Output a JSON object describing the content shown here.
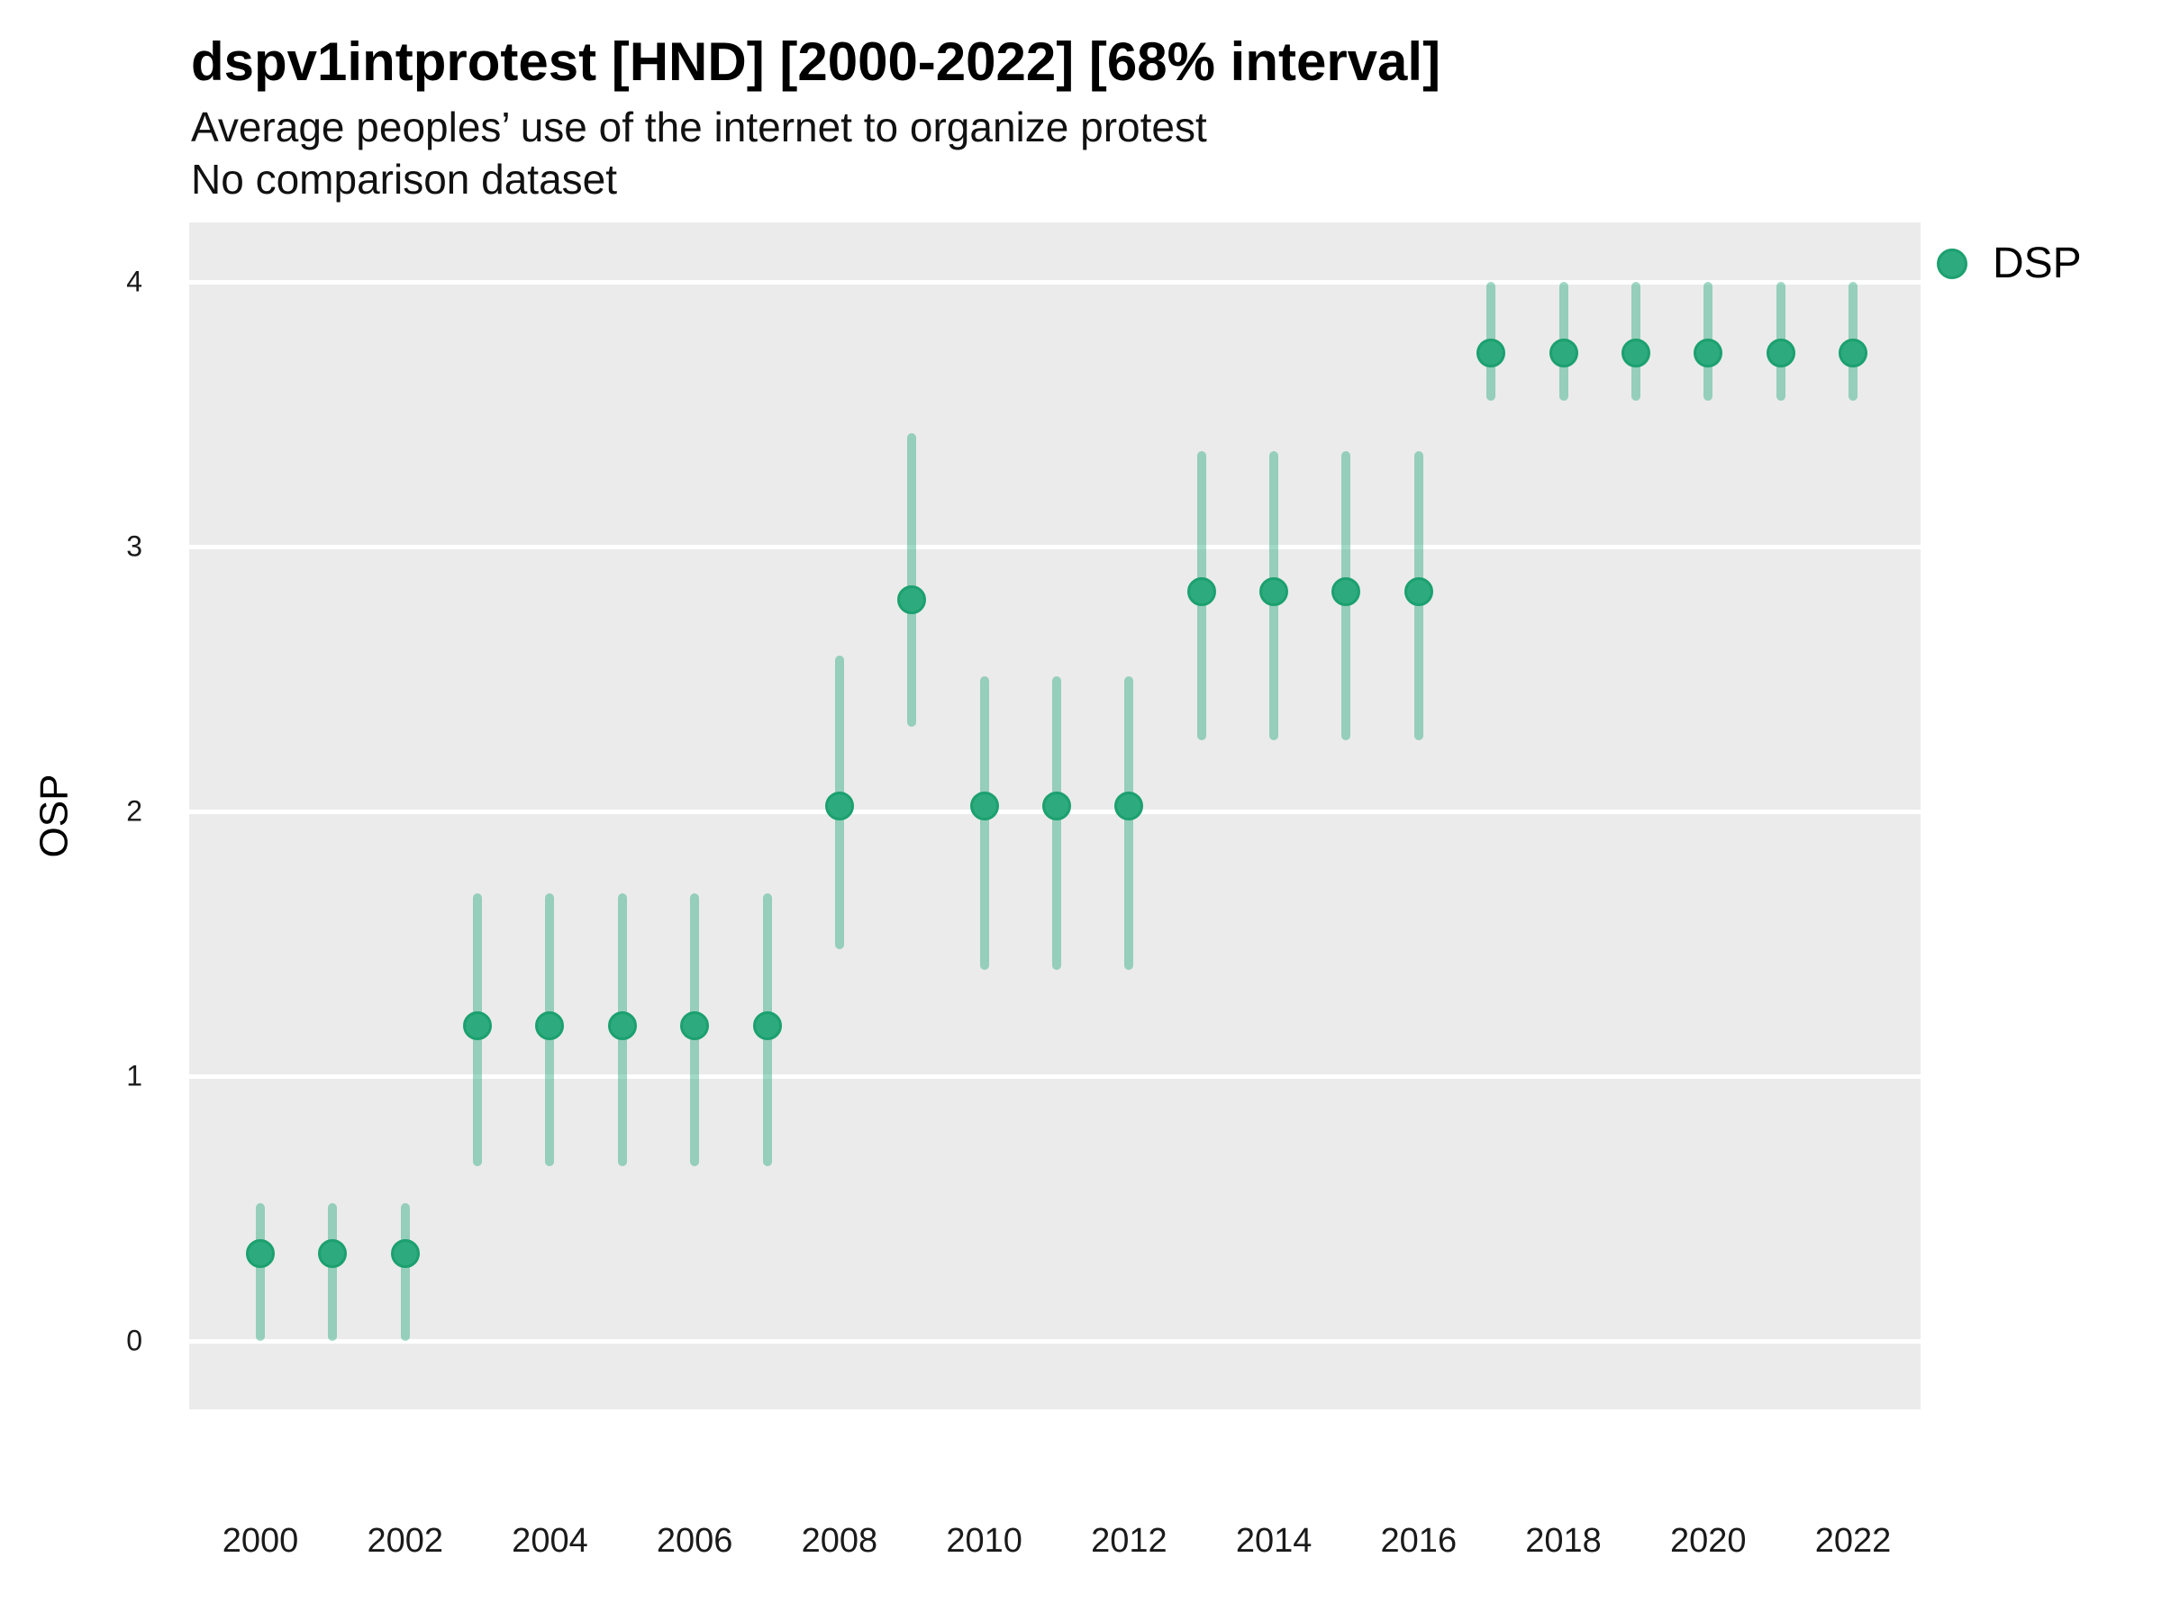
{
  "header": {
    "title": "dspv1intprotest [HND] [2000-2022] [68% interval]",
    "subtitle": "Average peoples’ use of the internet to organize protest",
    "note": "No comparison dataset"
  },
  "chart_data": {
    "type": "pointrange",
    "title": "dspv1intprotest [HND] [2000-2022] [68% interval]",
    "subtitle": "Average peoples’ use of the internet to organize protest",
    "note": "No comparison dataset",
    "interval_label": "68% interval",
    "country_code": "HND",
    "xlabel": "",
    "ylabel": "OSP",
    "x": [
      2000,
      2001,
      2002,
      2003,
      2004,
      2005,
      2006,
      2007,
      2008,
      2009,
      2010,
      2011,
      2012,
      2013,
      2014,
      2015,
      2016,
      2017,
      2018,
      2019,
      2020,
      2021,
      2022
    ],
    "series": [
      {
        "name": "DSP",
        "point": [
          0.33,
          0.33,
          0.33,
          1.19,
          1.19,
          1.19,
          1.19,
          1.19,
          2.02,
          2.8,
          2.02,
          2.02,
          2.02,
          2.83,
          2.83,
          2.83,
          2.83,
          3.73,
          3.73,
          3.73,
          3.73,
          3.73,
          3.73
        ],
        "low": [
          0.0,
          0.0,
          0.0,
          0.66,
          0.66,
          0.66,
          0.66,
          0.66,
          1.48,
          2.32,
          1.4,
          1.4,
          1.4,
          2.27,
          2.27,
          2.27,
          2.27,
          3.55,
          3.55,
          3.55,
          3.55,
          3.55,
          3.55
        ],
        "high": [
          0.52,
          0.52,
          0.52,
          1.69,
          1.69,
          1.69,
          1.69,
          1.69,
          2.59,
          3.43,
          2.51,
          2.51,
          2.51,
          3.36,
          3.36,
          3.36,
          3.36,
          4.0,
          4.0,
          4.0,
          4.0,
          4.0,
          4.0
        ]
      }
    ],
    "yticks": [
      0,
      1,
      2,
      3,
      4
    ],
    "xticks": [
      2000,
      2002,
      2004,
      2006,
      2008,
      2010,
      2012,
      2014,
      2016,
      2018,
      2020,
      2022
    ],
    "ylim": [
      -0.26,
      4.22
    ],
    "grid": "horizontal-major-only",
    "legend_position": "right-top",
    "legend": [
      {
        "label": "DSP"
      }
    ],
    "colors": {
      "panel_bg": "#EBEBEB",
      "gridline": "#FFFFFF",
      "point_fill": "#2DAB7E",
      "point_stroke": "#1CA06F",
      "interval_bar": "rgba(45,171,126,0.45)",
      "text": "#000000"
    }
  }
}
